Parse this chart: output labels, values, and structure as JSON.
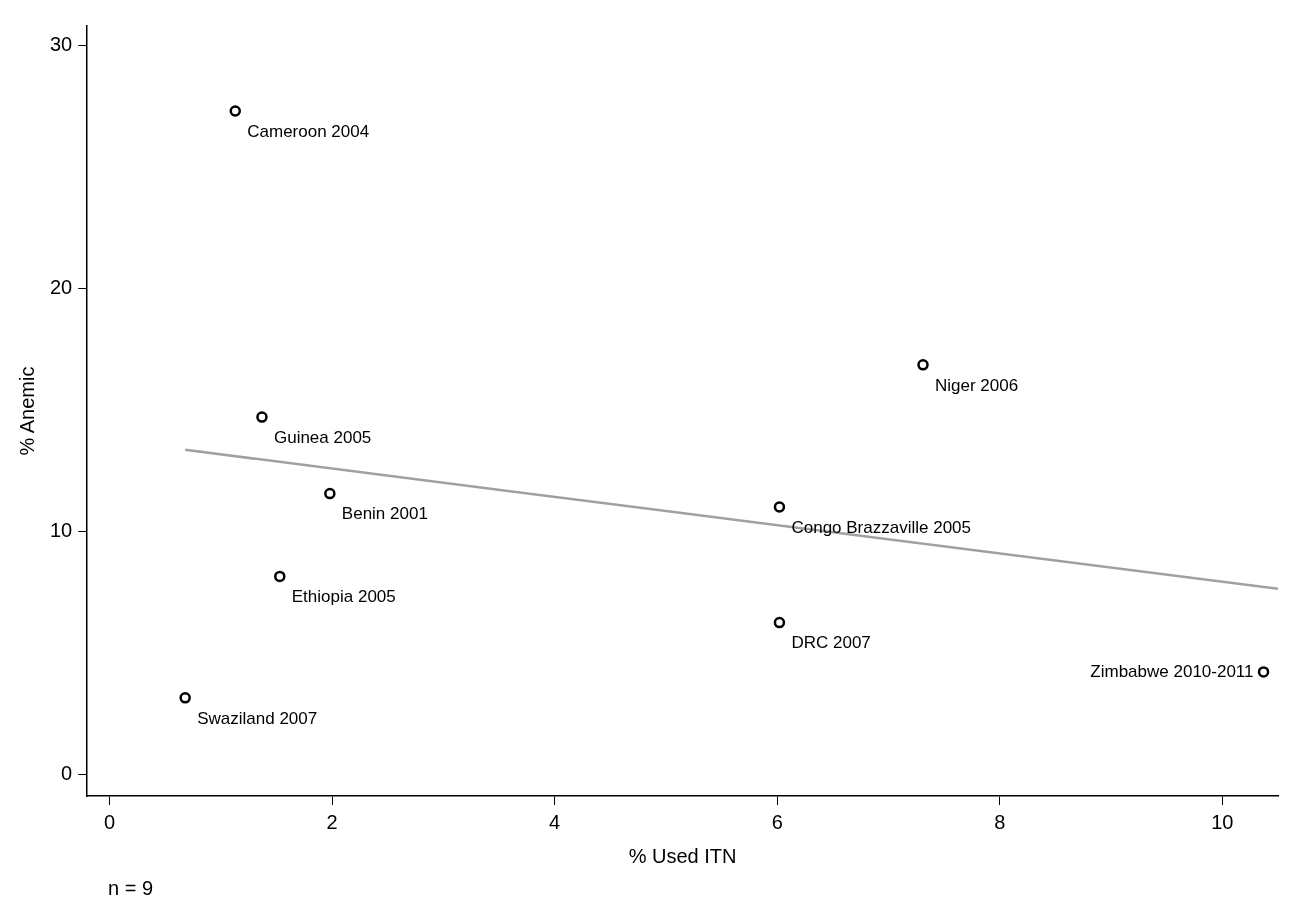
{
  "chart_data": {
    "type": "scatter",
    "xlabel": "% Used ITN",
    "ylabel": "% Anemic",
    "xlim": [
      -0.2,
      10.5
    ],
    "xticks": [
      0,
      2,
      4,
      6,
      8,
      10
    ],
    "ylim": [
      -0.9,
      30.8
    ],
    "yticks": [
      0,
      10,
      20,
      30
    ],
    "grid": false,
    "legend": false,
    "marker": "circle",
    "series": [
      {
        "color": "#000000",
        "x": [
          1.13,
          1.37,
          1.98,
          1.53,
          0.68,
          7.31,
          6.02,
          6.02,
          10.37
        ],
        "values": [
          27.3,
          14.7,
          11.55,
          8.14,
          3.14,
          16.85,
          11.0,
          6.24,
          4.21
        ]
      },
      {
        "type": "line",
        "color": "#a0a0a0",
        "marker": "none",
        "x": [
          0.68,
          10.5
        ],
        "values": [
          13.35,
          7.63
        ]
      }
    ],
    "annotations": [
      {
        "text": "Cameroon 2004",
        "x": 1.13,
        "y": 27.3
      },
      {
        "text": "Guinea 2005",
        "x": 1.37,
        "y": 14.7
      },
      {
        "text": "Benin 2001",
        "x": 1.98,
        "y": 11.55
      },
      {
        "text": "Ethiopia 2005",
        "x": 1.53,
        "y": 8.14
      },
      {
        "text": "Swaziland 2007",
        "x": 0.68,
        "y": 3.14
      },
      {
        "text": "Niger 2006",
        "x": 7.31,
        "y": 16.85
      },
      {
        "text": "Congo Brazzaville 2005",
        "x": 6.02,
        "y": 11.0
      },
      {
        "text": "DRC 2007",
        "x": 6.02,
        "y": 6.24
      },
      {
        "text": "Zimbabwe 2010-2011",
        "x": 10.37,
        "y": 4.21
      },
      "n = 9"
    ]
  }
}
